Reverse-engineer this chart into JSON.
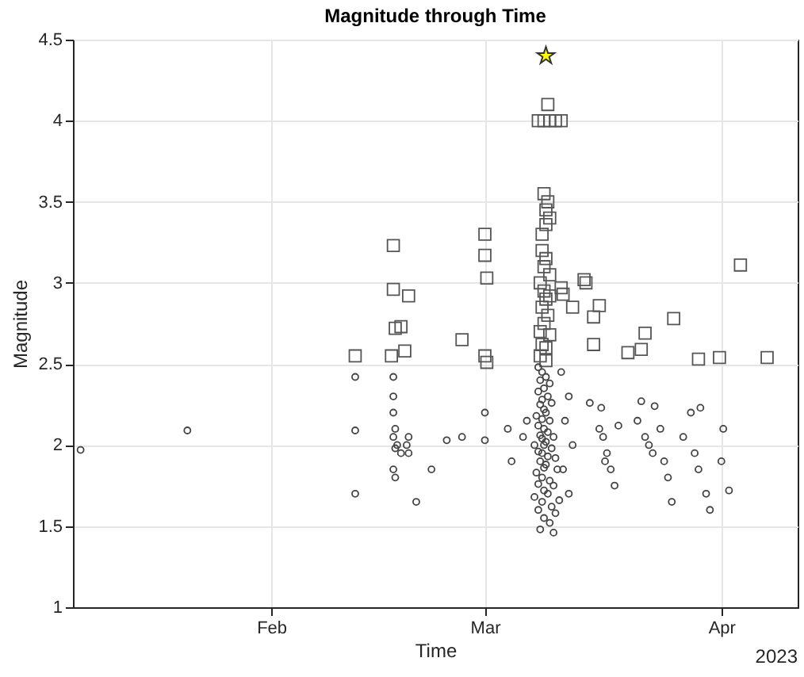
{
  "chart_data": {
    "type": "scatter",
    "title": "Magnitude through Time",
    "xlabel": "Time",
    "ylabel": "Magnitude",
    "annotations": [
      "2023"
    ],
    "xlim": [
      "2023-01-06",
      "2023-04-11"
    ],
    "xticks": [
      {
        "value": "2023-02-01",
        "label": "Feb"
      },
      {
        "value": "2023-03-01",
        "label": "Mar"
      },
      {
        "value": "2023-04-01",
        "label": "Apr"
      }
    ],
    "ylim": [
      1,
      4.5
    ],
    "yticks": [
      1,
      1.5,
      2,
      2.5,
      3,
      3.5,
      4,
      4.5
    ],
    "grid": true,
    "series": [
      {
        "color": "#555555",
        "marker": "square",
        "x": [
          "2023-02-17T00:00",
          "2023-02-17T00:00",
          "2023-02-17T06:00",
          "2023-02-18T00:00",
          "2023-02-16T18:00",
          "2023-02-19T00:00",
          "2023-02-18T12:00",
          "2023-02-12T00:00",
          "2023-02-26T00:00",
          "2023-03-01T00:00",
          "2023-03-01T00:00",
          "2023-03-01T06:00",
          "2023-03-01T00:00",
          "2023-03-01T06:00",
          "2023-03-09T06:00",
          "2023-03-08T00:00",
          "2023-03-08T18:00",
          "2023-03-09T12:00",
          "2023-03-10T06:00",
          "2023-03-11T00:00",
          "2023-03-08T18:00",
          "2023-03-09T06:00",
          "2023-03-09T00:00",
          "2023-03-09T12:00",
          "2023-03-09T00:00",
          "2023-03-08T12:00",
          "2023-03-08T12:00",
          "2023-03-09T00:00",
          "2023-03-08T18:00",
          "2023-03-09T12:00",
          "2023-03-08T06:00",
          "2023-03-08T18:00",
          "2023-03-09T12:00",
          "2023-03-09T00:00",
          "2023-03-08T12:00",
          "2023-03-09T06:00",
          "2023-03-08T18:00",
          "2023-03-08T06:00",
          "2023-03-09T12:00",
          "2023-03-08T12:00",
          "2023-03-09T00:00",
          "2023-03-08T06:00",
          "2023-03-09T00:00",
          "2023-03-11T00:00",
          "2023-03-11T06:00",
          "2023-03-12T12:00",
          "2023-03-14T00:00",
          "2023-03-14T06:00",
          "2023-03-16T00:00",
          "2023-03-15T06:00",
          "2023-03-15T06:00",
          "2023-03-19T18:00",
          "2023-03-21T12:00",
          "2023-03-22T00:00",
          "2023-03-25T18:00",
          "2023-03-29T00:00",
          "2023-03-31T18:00",
          "2023-04-03T12:00",
          "2023-04-07T00:00"
        ],
        "values": [
          3.23,
          2.96,
          2.72,
          2.73,
          2.55,
          2.92,
          2.58,
          2.55,
          2.65,
          3.3,
          3.17,
          3.03,
          2.55,
          2.51,
          4.1,
          4.0,
          4.0,
          4.0,
          4.0,
          4.0,
          3.55,
          3.5,
          3.45,
          3.4,
          3.36,
          3.3,
          3.2,
          3.15,
          3.1,
          3.05,
          3.0,
          2.95,
          2.92,
          2.9,
          2.85,
          2.8,
          2.75,
          2.7,
          2.68,
          2.62,
          2.6,
          2.55,
          2.52,
          2.97,
          2.93,
          2.85,
          3.02,
          3.0,
          2.86,
          2.79,
          2.62,
          2.57,
          2.59,
          2.69,
          2.78,
          2.53,
          2.54,
          3.11,
          2.54
        ]
      },
      {
        "color": "#444444",
        "marker": "circle",
        "x": [
          "2023-01-07T00:00",
          "2023-01-21T00:00",
          "2023-02-12T00:00",
          "2023-02-12T00:00",
          "2023-02-12T00:00",
          "2023-02-17T00:00",
          "2023-02-17T00:00",
          "2023-02-17T00:00",
          "2023-02-17T06:00",
          "2023-02-17T00:00",
          "2023-02-17T12:00",
          "2023-02-17T06:00",
          "2023-02-18T00:00",
          "2023-02-17T00:00",
          "2023-02-17T06:00",
          "2023-02-19T00:00",
          "2023-02-18T18:00",
          "2023-02-19T00:00",
          "2023-02-20T00:00",
          "2023-02-22T00:00",
          "2023-02-24T00:00",
          "2023-02-26T00:00",
          "2023-03-01T00:00",
          "2023-03-01T00:00",
          "2023-03-04T00:00",
          "2023-03-04T12:00",
          "2023-03-06T00:00",
          "2023-03-06T12:00",
          "2023-03-08T00:00",
          "2023-03-08T12:00",
          "2023-03-09T00:00",
          "2023-03-08T06:00",
          "2023-03-09T12:00",
          "2023-03-08T18:00",
          "2023-03-08T00:00",
          "2023-03-09T06:00",
          "2023-03-08T12:00",
          "2023-03-09T18:00",
          "2023-03-08T06:00",
          "2023-03-08T18:00",
          "2023-03-09T00:00",
          "2023-03-07T18:00",
          "2023-03-08T12:00",
          "2023-03-09T12:00",
          "2023-03-08T00:00",
          "2023-03-08T18:00",
          "2023-03-09T06:00",
          "2023-03-08T06:00",
          "2023-03-10T00:00",
          "2023-03-08T12:00",
          "2023-03-09T00:00",
          "2023-03-07T12:00",
          "2023-03-08T18:00",
          "2023-03-09T18:00",
          "2023-03-08T00:00",
          "2023-03-08T12:00",
          "2023-03-09T06:00",
          "2023-03-10T06:00",
          "2023-03-08T06:00",
          "2023-03-09T00:00",
          "2023-03-08T18:00",
          "2023-03-10T12:00",
          "2023-03-07T18:00",
          "2023-03-08T12:00",
          "2023-03-09T12:00",
          "2023-03-08T00:00",
          "2023-03-10T00:00",
          "2023-03-08T18:00",
          "2023-03-09T06:00",
          "2023-03-07T12:00",
          "2023-03-10T18:00",
          "2023-03-08T12:00",
          "2023-03-09T18:00",
          "2023-03-08T00:00",
          "2023-03-10T06:00",
          "2023-03-08T18:00",
          "2023-03-09T12:00",
          "2023-03-08T06:00",
          "2023-03-10T00:00",
          "2023-03-11T00:00",
          "2023-03-12T00:00",
          "2023-03-11T12:00",
          "2023-03-12T12:00",
          "2023-03-11T06:00",
          "2023-03-12T00:00",
          "2023-03-14T18:00",
          "2023-03-16T06:00",
          "2023-03-16T00:00",
          "2023-03-16T12:00",
          "2023-03-17T00:00",
          "2023-03-16T18:00",
          "2023-03-17T12:00",
          "2023-03-18T00:00",
          "2023-03-18T12:00",
          "2023-03-21T12:00",
          "2023-03-23T06:00",
          "2023-03-21T00:00",
          "2023-03-22T00:00",
          "2023-03-22T12:00",
          "2023-03-23T00:00",
          "2023-03-24T00:00",
          "2023-03-24T12:00",
          "2023-03-25T00:00",
          "2023-03-25T12:00",
          "2023-03-27T00:00",
          "2023-03-28T00:00",
          "2023-03-28T12:00",
          "2023-03-29T06:00",
          "2023-03-29T00:00",
          "2023-03-30T00:00",
          "2023-03-30T12:00",
          "2023-04-01T06:00",
          "2023-04-01T00:00",
          "2023-04-02T00:00"
        ],
        "values": [
          1.97,
          2.09,
          2.42,
          2.09,
          1.7,
          2.42,
          2.3,
          2.2,
          2.1,
          2.05,
          2.0,
          1.98,
          1.95,
          1.85,
          1.8,
          2.05,
          2.0,
          1.95,
          1.65,
          1.85,
          2.03,
          2.05,
          2.2,
          2.03,
          2.1,
          1.9,
          2.05,
          2.15,
          2.48,
          2.45,
          2.42,
          2.4,
          2.38,
          2.35,
          2.33,
          2.3,
          2.28,
          2.26,
          2.25,
          2.22,
          2.2,
          2.18,
          2.16,
          2.15,
          2.12,
          2.1,
          2.08,
          2.06,
          2.05,
          2.04,
          2.02,
          2.0,
          2.0,
          1.98,
          1.96,
          1.95,
          1.93,
          1.92,
          1.9,
          1.88,
          1.86,
          1.85,
          1.83,
          1.8,
          1.78,
          1.76,
          1.75,
          1.72,
          1.7,
          1.68,
          1.66,
          1.65,
          1.62,
          1.6,
          1.58,
          1.55,
          1.52,
          1.48,
          1.46,
          2.45,
          2.3,
          2.15,
          2.0,
          1.85,
          1.7,
          2.26,
          2.23,
          2.1,
          2.05,
          1.95,
          1.9,
          1.85,
          1.75,
          2.12,
          2.27,
          2.24,
          2.15,
          2.05,
          2.0,
          1.95,
          2.1,
          1.9,
          1.8,
          1.65,
          2.05,
          2.2,
          1.95,
          2.23,
          1.85,
          1.7,
          1.6,
          2.1,
          1.9,
          1.72
        ]
      },
      {
        "color": "#ffff00",
        "marker": "star",
        "x": [
          "2023-03-09T00:00"
        ],
        "values": [
          4.4
        ]
      }
    ]
  }
}
